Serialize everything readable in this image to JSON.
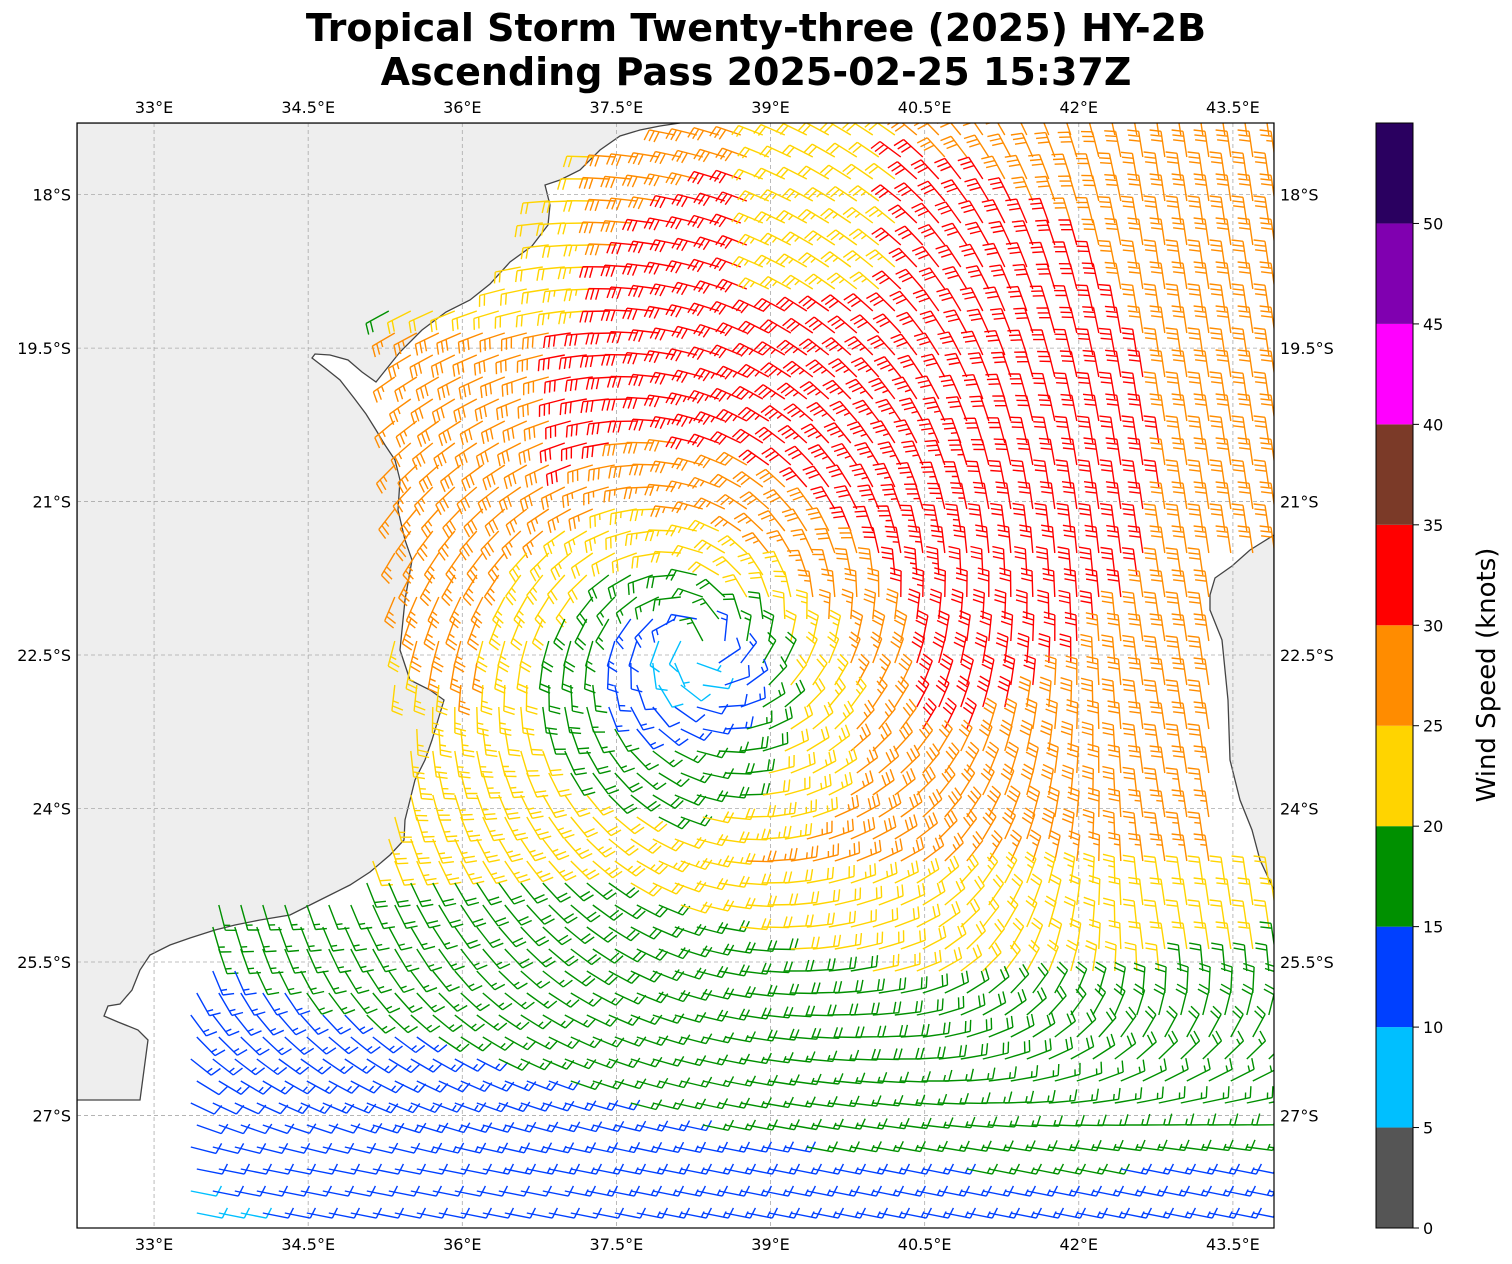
{
  "title": {
    "line1": "Tropical Storm Twenty-three (2025) HY-2B",
    "line2": "Ascending Pass 2025-02-25 15:37Z"
  },
  "map": {
    "lon_range": [
      32.25,
      43.9
    ],
    "lat_range": [
      -17.3,
      -28.1
    ],
    "lon_ticks": [
      {
        "value": 33.0,
        "label": "33°E"
      },
      {
        "value": 34.5,
        "label": "34.5°E"
      },
      {
        "value": 36.0,
        "label": "36°E"
      },
      {
        "value": 37.5,
        "label": "37.5°E"
      },
      {
        "value": 39.0,
        "label": "39°E"
      },
      {
        "value": 40.5,
        "label": "40.5°E"
      },
      {
        "value": 42.0,
        "label": "42°E"
      },
      {
        "value": 43.5,
        "label": "43.5°E"
      }
    ],
    "lat_ticks": [
      {
        "value": -18.0,
        "label": "18°S"
      },
      {
        "value": -19.5,
        "label": "19.5°S"
      },
      {
        "value": -21.0,
        "label": "21°S"
      },
      {
        "value": -22.5,
        "label": "22.5°S"
      },
      {
        "value": -24.0,
        "label": "24°S"
      },
      {
        "value": -25.5,
        "label": "25.5°S"
      },
      {
        "value": -27.0,
        "label": "27°S"
      }
    ],
    "gridlines": true,
    "storm_center": {
      "lon": 38.3,
      "lat": -22.4
    },
    "land_color": "#eeeeee",
    "coast_color": "#444444"
  },
  "colorbar": {
    "label": "Wind Speed (knots)",
    "ticks": [
      "0",
      "5",
      "10",
      "15",
      "20",
      "25",
      "30",
      "35",
      "40",
      "45",
      "50"
    ],
    "bins": [
      {
        "min": 0,
        "max": 5,
        "color": "#555555"
      },
      {
        "min": 5,
        "max": 10,
        "color": "#00bfff"
      },
      {
        "min": 10,
        "max": 15,
        "color": "#0040ff"
      },
      {
        "min": 15,
        "max": 20,
        "color": "#009000"
      },
      {
        "min": 20,
        "max": 25,
        "color": "#ffd400"
      },
      {
        "min": 25,
        "max": 30,
        "color": "#ff8c00"
      },
      {
        "min": 30,
        "max": 35,
        "color": "#ff0000"
      },
      {
        "min": 35,
        "max": 40,
        "color": "#7b3a28"
      },
      {
        "min": 40,
        "max": 45,
        "color": "#ff00ff"
      },
      {
        "min": 45,
        "max": 50,
        "color": "#8000b0"
      },
      {
        "min": 50,
        "max": 55,
        "color": "#2a0060"
      }
    ]
  }
}
